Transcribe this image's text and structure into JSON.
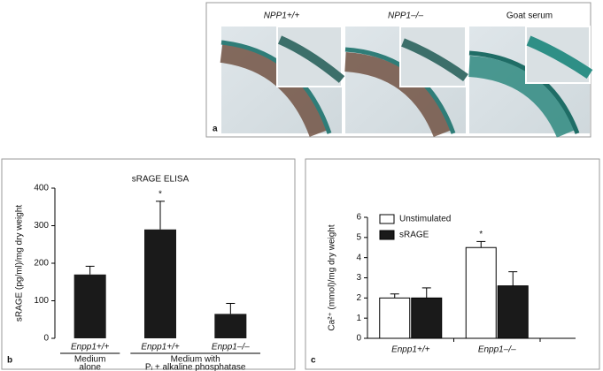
{
  "panel_a": {
    "label": "a",
    "images": [
      "NPP1+/+",
      "NPP1–/–",
      "Goat serum"
    ]
  },
  "chart_data": [
    {
      "type": "bar",
      "panel": "b",
      "title": "sRAGE ELISA",
      "y_label": "sRAGE (pg/ml)/mg dry weight",
      "categories": [
        "Enpp1+/+",
        "Enpp1+/+",
        "Enpp1–/–"
      ],
      "values": [
        170,
        290,
        65
      ],
      "errors": [
        22,
        75,
        28
      ],
      "markers": [
        null,
        "*",
        null
      ],
      "color": "#1a1a1a",
      "groups": [
        [
          "Medium",
          "alone"
        ],
        [
          "Medium with",
          "Pᵢ + alkaline phosphatase"
        ]
      ],
      "ylim": [
        0,
        400
      ],
      "yticks": [
        0,
        100,
        200,
        300,
        400
      ]
    },
    {
      "type": "bar",
      "panel": "c",
      "y_label": "Ca²⁺ (mmol)/mg dry weight",
      "categories": [
        "Enpp1+/+",
        "Enpp1–/–"
      ],
      "series": [
        {
          "name": "Unstimulated",
          "color": "#ffffff",
          "values": [
            2.0,
            4.5
          ],
          "errors": [
            0.2,
            0.3
          ],
          "markers": [
            null,
            "*"
          ]
        },
        {
          "name": "sRAGE",
          "color": "#1a1a1a",
          "values": [
            2.0,
            2.6
          ],
          "errors": [
            0.5,
            0.7
          ]
        }
      ],
      "legend": "upper left",
      "ylim": [
        0,
        6
      ],
      "yticks": [
        0,
        1,
        2,
        3,
        4,
        5,
        6
      ]
    }
  ]
}
